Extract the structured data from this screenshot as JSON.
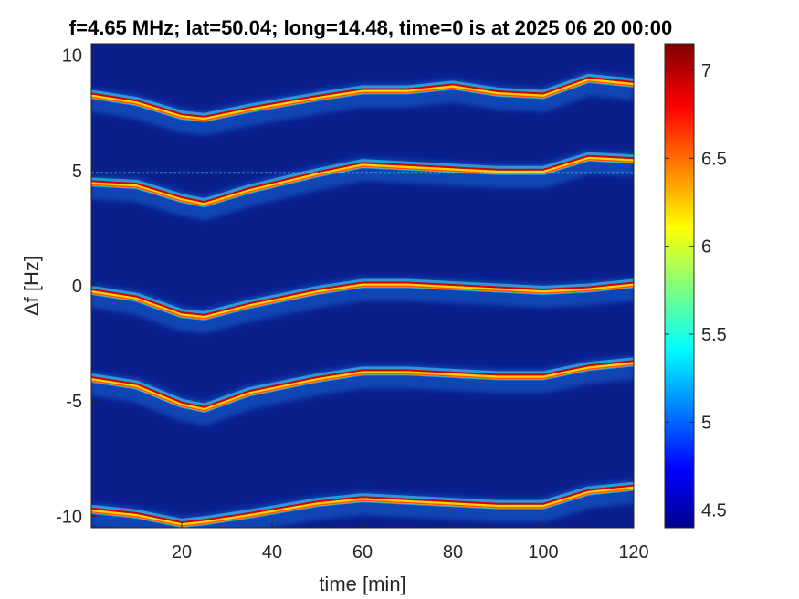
{
  "chart_data": {
    "type": "heatmap",
    "title": "f=4.65 MHz;  lat=50.04; long=14.48, time=0 is at 2025 06 20 00:00",
    "xlabel": "time [min]",
    "ylabel": "Δf [Hz]",
    "xlim": [
      0,
      120
    ],
    "ylim": [
      -10.5,
      10.5
    ],
    "xticks": [
      20,
      40,
      60,
      80,
      100,
      120
    ],
    "yticks": [
      10,
      5,
      0,
      -5,
      -10
    ],
    "colorbar": {
      "range": [
        4.4,
        7.15
      ],
      "ticks": [
        7,
        6.5,
        6,
        5.5,
        5,
        4.5
      ],
      "colormap": "jet",
      "background_color": "#0a1e8c"
    },
    "grid": false,
    "reference_line": {
      "y": 4.9,
      "color": "#5fd6ff"
    },
    "series": [
      {
        "offset_hz": 8.3,
        "points": [
          [
            0,
            8.3
          ],
          [
            10,
            8.0
          ],
          [
            20,
            7.4
          ],
          [
            25,
            7.3
          ],
          [
            35,
            7.7
          ],
          [
            50,
            8.2
          ],
          [
            60,
            8.5
          ],
          [
            70,
            8.5
          ],
          [
            80,
            8.7
          ],
          [
            90,
            8.4
          ],
          [
            100,
            8.3
          ],
          [
            110,
            9.0
          ],
          [
            120,
            8.8
          ]
        ]
      },
      {
        "offset_hz": 4.5,
        "points": [
          [
            0,
            4.5
          ],
          [
            10,
            4.4
          ],
          [
            20,
            3.8
          ],
          [
            25,
            3.6
          ],
          [
            35,
            4.2
          ],
          [
            50,
            4.9
          ],
          [
            60,
            5.3
          ],
          [
            70,
            5.2
          ],
          [
            80,
            5.1
          ],
          [
            90,
            5.0
          ],
          [
            100,
            5.0
          ],
          [
            110,
            5.6
          ],
          [
            120,
            5.5
          ]
        ]
      },
      {
        "offset_hz": -0.2,
        "points": [
          [
            0,
            -0.2
          ],
          [
            10,
            -0.5
          ],
          [
            20,
            -1.2
          ],
          [
            25,
            -1.3
          ],
          [
            35,
            -0.8
          ],
          [
            50,
            -0.2
          ],
          [
            60,
            0.1
          ],
          [
            70,
            0.1
          ],
          [
            80,
            0.0
          ],
          [
            90,
            -0.1
          ],
          [
            100,
            -0.2
          ],
          [
            110,
            -0.1
          ],
          [
            120,
            0.1
          ]
        ]
      },
      {
        "offset_hz": -4.0,
        "points": [
          [
            0,
            -4.0
          ],
          [
            10,
            -4.3
          ],
          [
            20,
            -5.1
          ],
          [
            25,
            -5.3
          ],
          [
            35,
            -4.6
          ],
          [
            50,
            -4.0
          ],
          [
            60,
            -3.7
          ],
          [
            70,
            -3.7
          ],
          [
            80,
            -3.8
          ],
          [
            90,
            -3.9
          ],
          [
            100,
            -3.9
          ],
          [
            110,
            -3.5
          ],
          [
            120,
            -3.3
          ]
        ]
      },
      {
        "offset_hz": -9.7,
        "points": [
          [
            0,
            -9.7
          ],
          [
            10,
            -9.9
          ],
          [
            20,
            -10.3
          ],
          [
            25,
            -10.2
          ],
          [
            35,
            -9.9
          ],
          [
            50,
            -9.4
          ],
          [
            60,
            -9.2
          ],
          [
            70,
            -9.3
          ],
          [
            80,
            -9.4
          ],
          [
            90,
            -9.5
          ],
          [
            100,
            -9.5
          ],
          [
            110,
            -8.9
          ],
          [
            120,
            -8.7
          ]
        ]
      }
    ]
  }
}
